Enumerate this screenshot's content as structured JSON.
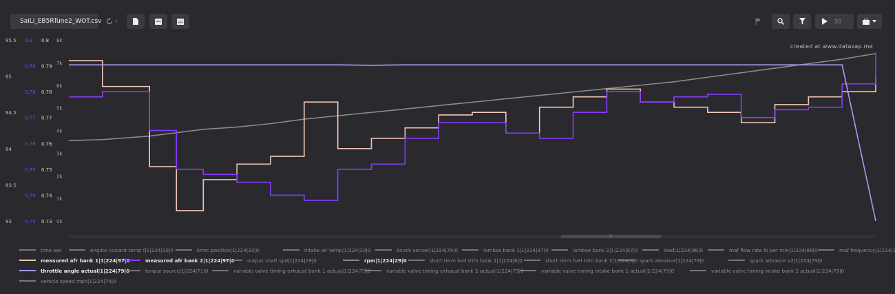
{
  "toolbar": {
    "file_name": "SaiLi_EB5RTune2_WOT.csv",
    "speed_value": "50"
  },
  "watermark": "created at www.datazap.me",
  "chart_data": {
    "type": "line",
    "x": [
      0,
      50,
      120,
      160,
      200,
      250,
      300,
      350,
      400,
      450,
      500,
      550,
      600,
      650,
      700,
      750,
      800,
      850,
      900,
      950,
      1000,
      1050,
      1100,
      1150,
      1200
    ],
    "axes": [
      {
        "id": "speed",
        "color": "#bbbbbb",
        "ticks": [
          "85.5",
          "85",
          "84.5",
          "84",
          "83.5",
          "83"
        ],
        "range": [
          83,
          85.5
        ]
      },
      {
        "id": "afr2",
        "color": "#8a3cff",
        "ticks": [
          "0.8",
          "0.79",
          "0.78",
          "0.77",
          "0.76",
          "0.75",
          "0.74",
          "0.73"
        ],
        "range": [
          0.73,
          0.8
        ]
      },
      {
        "id": "afr1",
        "color": "#f3c6b8",
        "ticks": [
          "0.8",
          "0.79",
          "0.78",
          "0.77",
          "0.76",
          "0.75",
          "0.74",
          "0.73"
        ],
        "range": [
          0.73,
          0.8
        ]
      },
      {
        "id": "rpm",
        "color": "#aaaaaa",
        "ticks": [
          "8k",
          "7k",
          "6k",
          "5k",
          "4k",
          "3k",
          "2k",
          "1k",
          "0k"
        ],
        "range": [
          0,
          8000
        ]
      }
    ],
    "series": [
      {
        "name": "rpm|1|224|29|0",
        "color": "#8a8a8a",
        "axis": "rpm",
        "values": [
          3550,
          3600,
          3750,
          3900,
          4050,
          4150,
          4300,
          4500,
          4650,
          4800,
          4950,
          5100,
          5250,
          5400,
          5550,
          5700,
          5850,
          6000,
          6150,
          6350,
          6550,
          6750,
          6950,
          7150,
          7400
        ]
      },
      {
        "name": "measured afr bank 1|1|224|97|0",
        "color": "#f3c6b8",
        "axis": "afr1",
        "values": [
          0.792,
          0.782,
          0.751,
          0.734,
          0.746,
          0.752,
          0.755,
          0.776,
          0.758,
          0.762,
          0.766,
          0.771,
          0.772,
          0.764,
          0.774,
          0.778,
          0.781,
          0.776,
          0.774,
          0.772,
          0.768,
          0.775,
          0.778,
          0.78,
          0.786
        ]
      },
      {
        "name": "measured afr bank 2|1|224|97|0",
        "color": "#8a3cff",
        "axis": "afr2",
        "values": [
          0.778,
          0.78,
          0.765,
          0.75,
          0.748,
          0.745,
          0.74,
          0.738,
          0.75,
          0.752,
          0.762,
          0.768,
          0.768,
          0.764,
          0.762,
          0.772,
          0.78,
          0.776,
          0.778,
          0.779,
          0.77,
          0.773,
          0.774,
          0.783,
          0.795
        ]
      },
      {
        "name": "throttle angle actual|1|224|79|0",
        "color": "#a59cf2",
        "axis": "rpm",
        "values": [
          6900,
          6900,
          6900,
          6900,
          6900,
          6900,
          6900,
          6900,
          6900,
          6880,
          6900,
          6900,
          6900,
          6900,
          6900,
          6900,
          6900,
          6900,
          6900,
          6900,
          6900,
          6900,
          6900,
          6900,
          0
        ]
      }
    ]
  },
  "legend": [
    {
      "label": "time sec",
      "bold": false
    },
    {
      "label": "engine coolant temp f|1|224|10|0",
      "bold": false
    },
    {
      "label": "kmrc position|1|224|33|0",
      "bold": false
    },
    {
      "label": "intake air temp|1|224|10|0",
      "bold": false
    },
    {
      "label": "knock sensor|1|224|79|0",
      "bold": false
    },
    {
      "label": "lambse bank 1|1|224|97|0",
      "bold": false
    },
    {
      "label": "lambse bank 2|1|224|97|0",
      "bold": false
    },
    {
      "label": "load|1|224|98|0",
      "bold": false
    },
    {
      "label": "maf flow rate lb per min|1|224|88|0",
      "bold": false
    },
    {
      "label": "maf frequency|1|224|34|0",
      "bold": false
    },
    {
      "label": "measured afr bank 1|1|224|97|0",
      "bold": true,
      "color": "#f3c6b8"
    },
    {
      "label": "measured afr bank 2|1|224|97|0",
      "bold": true,
      "color": "#8a3cff"
    },
    {
      "label": "output shaft spd|1|224|29|0",
      "bold": false
    },
    {
      "label": "rpm|1|224|29|0",
      "bold": true,
      "color": "#8a8a8a"
    },
    {
      "label": "short term fuel trim bank 1|1|224|6|0",
      "bold": false
    },
    {
      "label": "short term fuel trim bank 2|1|224|6|0",
      "bold": false
    },
    {
      "label": "spark advance|1|224|79|0",
      "bold": false
    },
    {
      "label": "spark advance v2|1|224|79|0",
      "bold": false
    },
    {
      "label": "throttle angle actual|1|224|79|0",
      "bold": true,
      "color": "#a59cf2"
    },
    {
      "label": "torque source|1|224|71|0",
      "bold": false
    },
    {
      "label": "variable valve timing exhaust bank 1 actual|1|224|79|0",
      "bold": false
    },
    {
      "label": "variable valve timing exhaust bank 2 actual|1|224|79|0",
      "bold": false
    },
    {
      "label": "variable valve timing intake bank 1 actual|1|224|79|0",
      "bold": false
    },
    {
      "label": "variable valve timing intake bank 2 actual|1|224|79|0",
      "bold": false
    },
    {
      "label": "vehicle speed mph|1|224|74|0",
      "bold": false
    }
  ]
}
